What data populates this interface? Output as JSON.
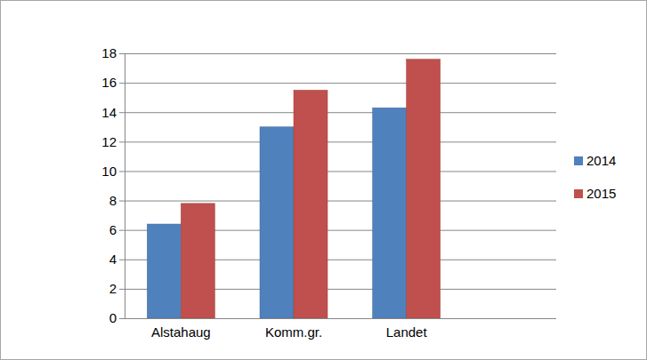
{
  "chart_data": {
    "type": "bar",
    "categories": [
      "Alstahaug",
      "Komm.gr.",
      "Landet"
    ],
    "series": [
      {
        "name": "2014",
        "color": "#4f81bd",
        "values": [
          6.4,
          13.0,
          14.3
        ]
      },
      {
        "name": "2015",
        "color": "#c0504d",
        "values": [
          7.8,
          15.5,
          17.6
        ]
      }
    ],
    "ylim": [
      0,
      18
    ],
    "yticks": [
      0,
      2,
      4,
      6,
      8,
      10,
      12,
      14,
      16,
      18
    ],
    "grid": true,
    "legend": "right"
  }
}
